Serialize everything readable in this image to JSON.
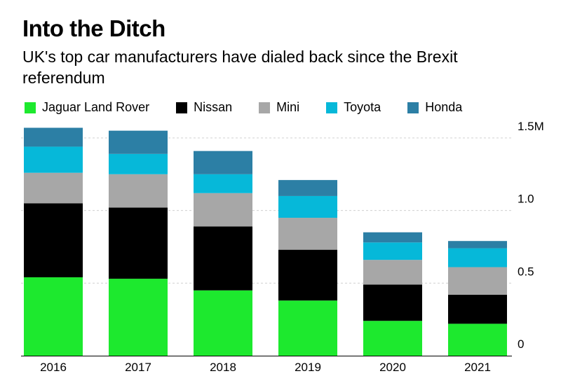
{
  "title": "Into the Ditch",
  "subtitle": "UK's top car manufacturers have dialed back since the Brexit referendum",
  "chart_data": {
    "type": "bar",
    "stacked": true,
    "categories": [
      "2016",
      "2017",
      "2018",
      "2019",
      "2020",
      "2021"
    ],
    "series": [
      {
        "name": "Jaguar Land Rover",
        "color": "#1de92e",
        "values": [
          0.54,
          0.53,
          0.45,
          0.38,
          0.24,
          0.22
        ]
      },
      {
        "name": "Nissan",
        "color": "#000000",
        "values": [
          0.51,
          0.49,
          0.44,
          0.35,
          0.25,
          0.2
        ]
      },
      {
        "name": "Mini",
        "color": "#a7a7a7",
        "values": [
          0.21,
          0.23,
          0.23,
          0.22,
          0.17,
          0.19
        ]
      },
      {
        "name": "Toyota",
        "color": "#06b8d9",
        "values": [
          0.18,
          0.14,
          0.13,
          0.15,
          0.12,
          0.13
        ]
      },
      {
        "name": "Honda",
        "color": "#2c7fa5",
        "values": [
          0.13,
          0.16,
          0.16,
          0.11,
          0.07,
          0.05
        ]
      }
    ],
    "y_ticks": [
      {
        "value": 0,
        "label": "0"
      },
      {
        "value": 0.5,
        "label": "0.5"
      },
      {
        "value": 1.0,
        "label": "1.0"
      },
      {
        "value": 1.5,
        "label": "1.5M"
      }
    ],
    "ylim": [
      0,
      1.5
    ],
    "grid": true,
    "legend_position": "top",
    "xlabel": "",
    "ylabel": ""
  }
}
